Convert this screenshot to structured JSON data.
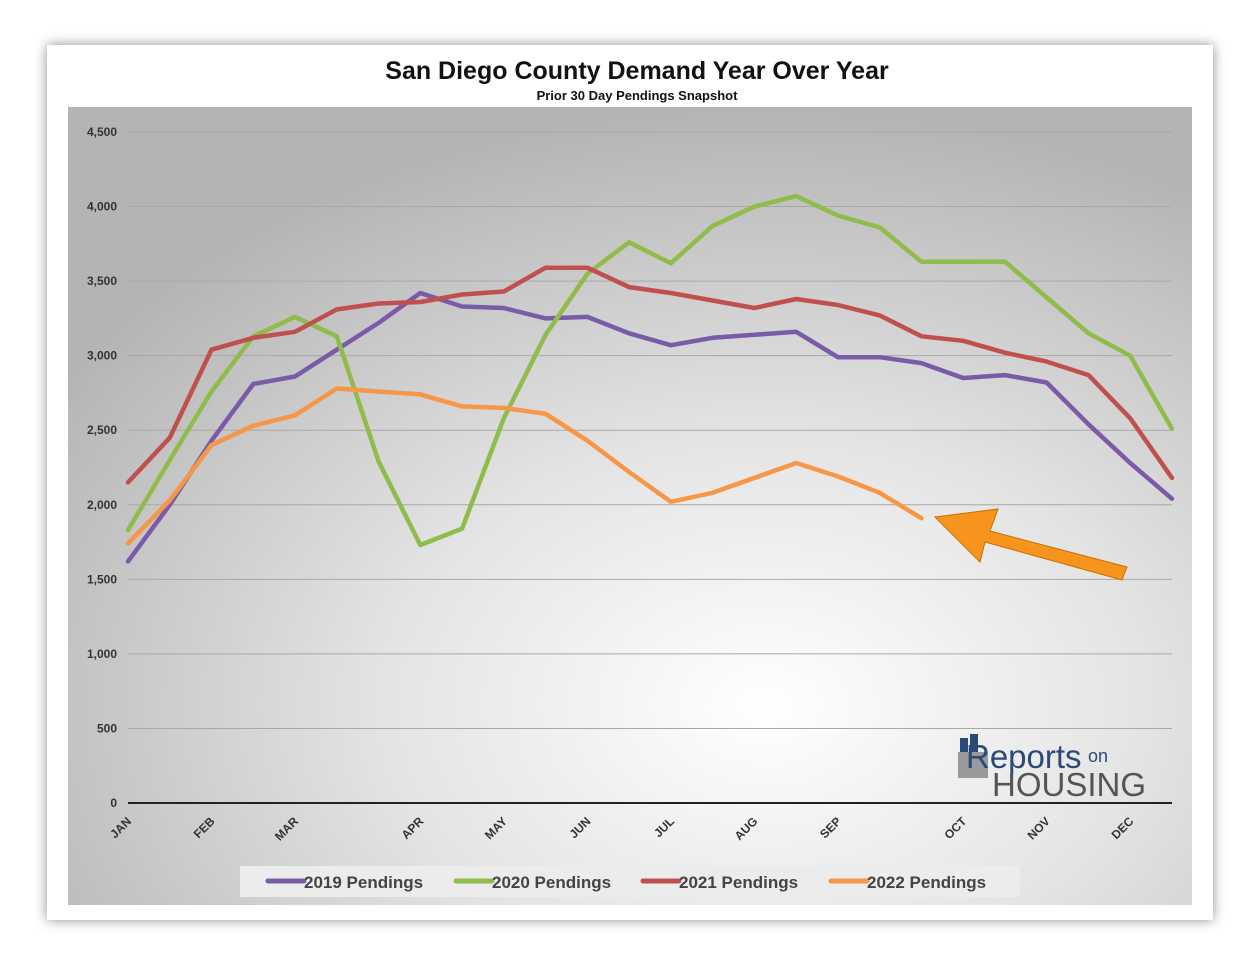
{
  "chart_data": {
    "type": "line",
    "title": "San Diego County Demand Year Over Year",
    "subtitle": "Prior 30 Day Pendings Snapshot",
    "categories": [
      "JAN",
      null,
      "FEB",
      null,
      "MAR",
      null,
      null,
      "APR",
      null,
      "MAY",
      null,
      "JUN",
      null,
      "JUL",
      null,
      "AUG",
      null,
      "SEP",
      null,
      null,
      "OCT",
      null,
      "NOV",
      null,
      "DEC",
      null
    ],
    "series": [
      {
        "name": "2019 Pendings",
        "color": "#7b5ba8",
        "values": [
          1620,
          2000,
          2430,
          2810,
          2860,
          3040,
          3220,
          3420,
          3330,
          3320,
          3250,
          3260,
          3150,
          3070,
          3120,
          3140,
          3160,
          2990,
          2990,
          2950,
          2850,
          2870,
          2820,
          2540,
          2280,
          2040
        ]
      },
      {
        "name": "2020 Pendings",
        "color": "#8fbc4a",
        "values": [
          1830,
          2300,
          2760,
          3130,
          3260,
          3130,
          2290,
          1730,
          1840,
          2580,
          3140,
          3550,
          3760,
          3620,
          3870,
          4000,
          4070,
          3940,
          3860,
          3630,
          3630,
          3630,
          3390,
          3150,
          3000,
          2510
        ]
      },
      {
        "name": "2021 Pendings",
        "color": "#c0504d",
        "values": [
          2150,
          2450,
          3040,
          3120,
          3160,
          3310,
          3350,
          3360,
          3410,
          3430,
          3590,
          3590,
          3460,
          3420,
          3370,
          3320,
          3380,
          3340,
          3270,
          3130,
          3100,
          3020,
          2960,
          2870,
          2580,
          2180
        ]
      },
      {
        "name": "2022 Pendings",
        "color": "#f79646",
        "values": [
          1740,
          2030,
          2400,
          2530,
          2600,
          2780,
          2760,
          2740,
          2660,
          2650,
          2610,
          2430,
          2220,
          2020,
          2080,
          2180,
          2280,
          2190,
          2080,
          1910,
          null,
          null,
          null,
          null,
          null,
          null
        ]
      }
    ],
    "ylim": [
      0,
      4500
    ],
    "yticks": [
      0,
      500,
      {
        "value": 1000,
        "label": "1,000"
      },
      {
        "value": 1500,
        "label": "1,500"
      },
      {
        "value": 2000,
        "label": "2,000"
      },
      {
        "value": 2500,
        "label": "2,500"
      },
      {
        "value": 3000,
        "label": "3,000"
      },
      {
        "value": 3500,
        "label": "3,500"
      },
      {
        "value": 4000,
        "label": "4,000"
      },
      {
        "value": 4500,
        "label": "4,500"
      }
    ],
    "grid": true,
    "legend": "bottom",
    "logo": {
      "word": "Reports",
      "small": "on",
      "big": "HOUSING"
    }
  }
}
